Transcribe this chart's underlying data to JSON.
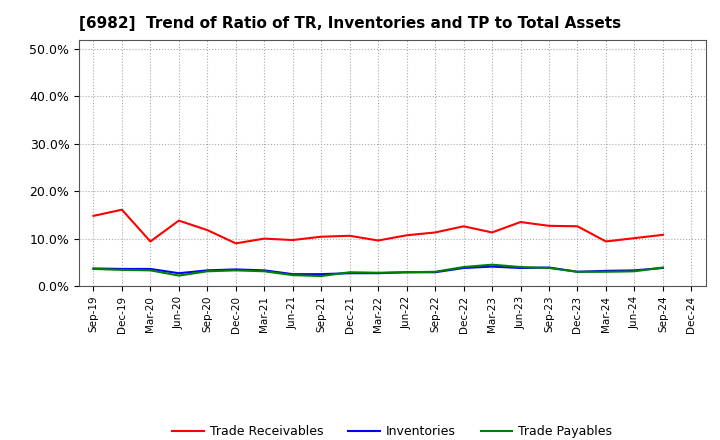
{
  "title": "[6982]  Trend of Ratio of TR, Inventories and TP to Total Assets",
  "x_labels": [
    "Sep-19",
    "Dec-19",
    "Mar-20",
    "Jun-20",
    "Sep-20",
    "Dec-20",
    "Mar-21",
    "Jun-21",
    "Sep-21",
    "Dec-21",
    "Mar-22",
    "Jun-22",
    "Sep-22",
    "Dec-22",
    "Mar-23",
    "Jun-23",
    "Sep-23",
    "Dec-23",
    "Mar-24",
    "Jun-24",
    "Sep-24",
    "Dec-24"
  ],
  "trade_receivables": [
    0.148,
    0.161,
    0.094,
    0.138,
    0.118,
    0.09,
    0.1,
    0.097,
    0.104,
    0.106,
    0.096,
    0.107,
    0.113,
    0.126,
    0.113,
    0.135,
    0.127,
    0.126,
    0.094,
    0.101,
    0.108,
    null
  ],
  "inventories": [
    0.037,
    0.036,
    0.036,
    0.027,
    0.033,
    0.035,
    0.033,
    0.025,
    0.025,
    0.027,
    0.027,
    0.029,
    0.029,
    0.038,
    0.041,
    0.038,
    0.039,
    0.03,
    0.032,
    0.033,
    0.038,
    null
  ],
  "trade_payables": [
    0.036,
    0.034,
    0.033,
    0.022,
    0.031,
    0.033,
    0.031,
    0.023,
    0.021,
    0.029,
    0.028,
    0.029,
    0.03,
    0.04,
    0.045,
    0.04,
    0.038,
    0.03,
    0.03,
    0.031,
    0.039,
    null
  ],
  "ylim": [
    0.0,
    0.52
  ],
  "yticks": [
    0.0,
    0.1,
    0.2,
    0.3,
    0.4,
    0.5
  ],
  "ytick_labels": [
    "0.0%",
    "10.0%",
    "20.0%",
    "30.0%",
    "40.0%",
    "50.0%"
  ],
  "color_tr": "#FF0000",
  "color_inv": "#0000FF",
  "color_tp": "#008000",
  "legend_labels": [
    "Trade Receivables",
    "Inventories",
    "Trade Payables"
  ],
  "background_color": "#FFFFFF",
  "grid_color": "#AAAAAA"
}
